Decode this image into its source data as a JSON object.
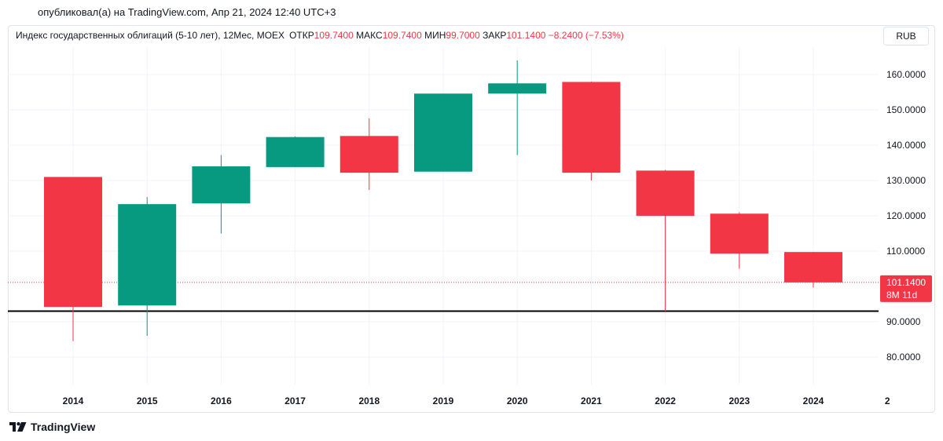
{
  "published": "опубликовал(а) на TradingView.com, Апр 21, 2024 12:40 UTC+3",
  "legend": {
    "symbol": "Индекс государственных облигаций (5-10 лет), 12Мес, MOEX",
    "open_label": "ОТКР",
    "open": "109.7400",
    "high_label": "МАКС",
    "high": "109.7400",
    "low_label": "МИН",
    "low": "99.7000",
    "close_label": "ЗАКР",
    "close": "101.1400",
    "change": "−8.2400 (−7.53%)"
  },
  "currency": "RUB",
  "last_price": {
    "value": "101.1400",
    "countdown": "8M 11d"
  },
  "footer": {
    "brand": "TradingView"
  },
  "colors": {
    "up": "#089981",
    "down": "#f23645",
    "hline": "#000000"
  },
  "chart_data": {
    "type": "candlestick",
    "interval": "12Мес",
    "y_ticks": [
      "80.0000",
      "90.0000",
      "110.0000",
      "120.0000",
      "130.0000",
      "140.0000",
      "150.0000",
      "160.0000"
    ],
    "x_ticks": [
      "2014",
      "2015",
      "2016",
      "2017",
      "2018",
      "2019",
      "2020",
      "2021",
      "2022",
      "2023",
      "2024",
      "2"
    ],
    "candles": [
      {
        "year": "2014",
        "open": 131,
        "high": 131,
        "low": 84.5,
        "close": 94.2
      },
      {
        "year": "2015",
        "open": 94.6,
        "high": 125.3,
        "low": 86.0,
        "close": 123.3
      },
      {
        "year": "2016",
        "open": 123.5,
        "high": 137.2,
        "low": 115.0,
        "close": 134.0
      },
      {
        "year": "2017",
        "open": 133.8,
        "high": 142.5,
        "low": 133.8,
        "close": 142.3
      },
      {
        "year": "2018",
        "open": 142.6,
        "high": 147.6,
        "low": 127.3,
        "close": 132.2
      },
      {
        "year": "2019",
        "open": 132.5,
        "high": 154.6,
        "low": 132.5,
        "close": 154.6
      },
      {
        "year": "2020",
        "open": 154.6,
        "high": 164.0,
        "low": 137.2,
        "close": 157.5
      },
      {
        "year": "2021",
        "open": 157.9,
        "high": 158.0,
        "low": 130.0,
        "close": 132.2
      },
      {
        "year": "2022",
        "open": 132.8,
        "high": 133.0,
        "low": 93.0,
        "close": 120.0
      },
      {
        "year": "2023",
        "open": 120.6,
        "high": 121.0,
        "low": 105.0,
        "close": 109.3
      },
      {
        "year": "2024",
        "open": 109.74,
        "high": 109.74,
        "low": 99.7,
        "close": 101.14
      }
    ],
    "horizontal_line": 93.0,
    "last_close": 101.14
  }
}
